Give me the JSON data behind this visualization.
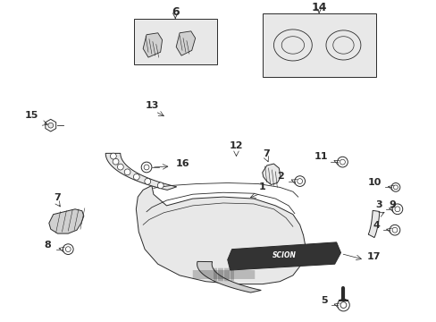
{
  "bg_color": "#ffffff",
  "gray": "#2a2a2a",
  "light_fill": "#e8e8e8",
  "mid_fill": "#d0d0d0",
  "box_fill": "#e8e8e8"
}
